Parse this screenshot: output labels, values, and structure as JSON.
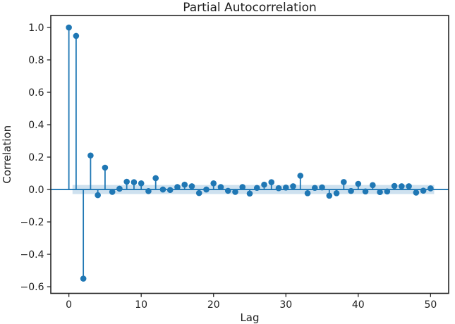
{
  "chart_data": {
    "type": "stem",
    "title": "Partial Autocorrelation",
    "xlabel": "Lag",
    "ylabel": "Correlation",
    "x": [
      0,
      1,
      2,
      3,
      4,
      5,
      6,
      7,
      8,
      9,
      10,
      11,
      12,
      13,
      14,
      15,
      16,
      17,
      18,
      19,
      20,
      21,
      22,
      23,
      24,
      25,
      26,
      27,
      28,
      29,
      30,
      31,
      32,
      33,
      34,
      35,
      36,
      37,
      38,
      39,
      40,
      41,
      42,
      43,
      44,
      45,
      46,
      47,
      48,
      49,
      50
    ],
    "values": [
      1.0,
      0.948,
      -0.55,
      0.21,
      -0.035,
      0.135,
      -0.015,
      0.005,
      0.048,
      0.045,
      0.038,
      -0.01,
      0.07,
      0.0,
      -0.003,
      0.015,
      0.03,
      0.02,
      -0.022,
      0.0,
      0.038,
      0.015,
      -0.008,
      -0.015,
      0.015,
      -0.025,
      0.01,
      0.03,
      0.045,
      0.008,
      0.012,
      0.02,
      0.085,
      -0.023,
      0.01,
      0.013,
      -0.038,
      -0.023,
      0.046,
      -0.009,
      0.035,
      -0.012,
      0.027,
      -0.016,
      -0.012,
      0.022,
      0.02,
      0.02,
      -0.019,
      -0.007,
      0.007
    ],
    "confidence_band": {
      "lower": -0.028,
      "upper": 0.028,
      "x_start": 0.5,
      "x_end": 50.5
    },
    "xlim": [
      -2.5,
      52.5
    ],
    "ylim": [
      -0.641,
      1.074
    ],
    "x_ticks": [
      0,
      10,
      20,
      30,
      40,
      50
    ],
    "x_tick_labels": [
      "0",
      "10",
      "20",
      "30",
      "40",
      "50"
    ],
    "y_ticks": [
      1.0,
      0.8,
      0.6,
      0.4,
      0.2,
      0.0,
      -0.2,
      -0.4,
      -0.6
    ],
    "y_tick_labels": [
      "1.0",
      "0.8",
      "0.6",
      "0.4",
      "0.2",
      "0.0",
      "−0.2",
      "−0.4",
      "−0.6"
    ],
    "legend": null,
    "grid": false,
    "colors": {
      "stem": "#1f77b4",
      "marker": "#1f77b4",
      "zero_line": "#1f77b4",
      "band": "#1f77b4",
      "band_alpha": 0.22,
      "spine": "#262626",
      "text": "#202020"
    }
  }
}
